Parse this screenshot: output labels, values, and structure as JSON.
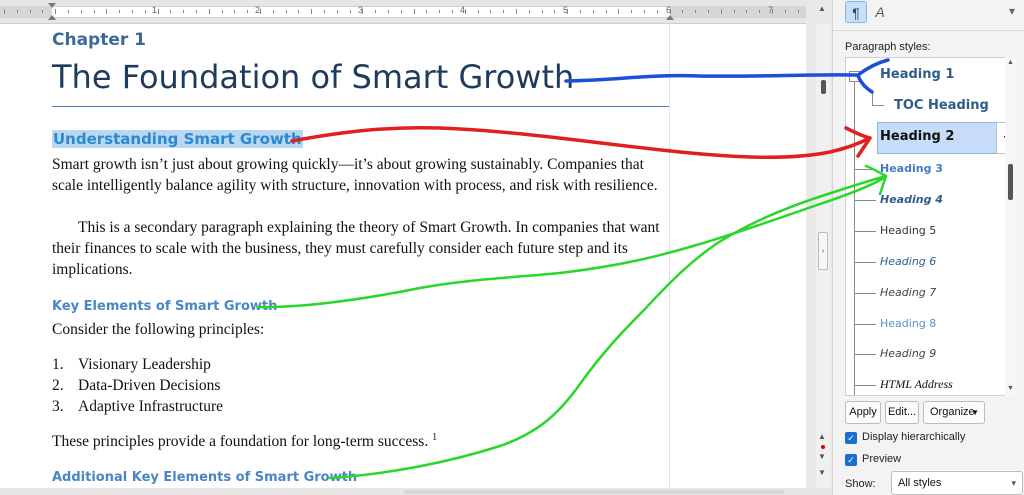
{
  "ruler": {
    "marks": [
      "1",
      "2",
      "3",
      "4",
      "5",
      "6",
      "7"
    ]
  },
  "document": {
    "chapter_label": "Chapter 1",
    "title": "The Foundation of Smart Growth",
    "heading_understanding": "Understanding Smart Growth",
    "para1": "Smart growth isn’t just about growing quickly—it’s about growing sustainably. Companies that scale intelligently balance agility with structure, innovation with process, and risk with resilience.",
    "para2": "This is a secondary paragraph explaining the theory of Smart Growth. In companies that want their finances to scale with the business, they must carefully consider each future step and its implications.",
    "heading_key_elements": "Key Elements of Smart Growth",
    "para3": "Consider the following principles:",
    "list": [
      {
        "num": "1.",
        "text": "Visionary Leadership"
      },
      {
        "num": "2.",
        "text": "Data-Driven Decisions"
      },
      {
        "num": "3.",
        "text": "Adaptive Infrastructure"
      }
    ],
    "para4": "These principles provide a foundation for long-term success.",
    "footnote_ref": "1",
    "heading_additional": "Additional Key Elements of Smart Growth"
  },
  "panel": {
    "toolbar": {
      "paragraph_styles_icon": "pilcrow-icon",
      "character_styles_icon": "character-style-icon"
    },
    "section_label": "Paragraph styles:",
    "styles": [
      {
        "label": "Heading 1",
        "color": "#2f5d8a"
      },
      {
        "label": "TOC Heading",
        "color": "#2f5d8a"
      },
      {
        "label": "Heading 2",
        "color": "#111111"
      },
      {
        "label": "Heading 3",
        "color": "#3f7fc0"
      },
      {
        "label": "Heading 4",
        "color": "#2f5d8a"
      },
      {
        "label": "Heading 5",
        "color": "#333333"
      },
      {
        "label": "Heading 6",
        "color": "#2f5d8a"
      },
      {
        "label": "Heading 7",
        "color": "#444444"
      },
      {
        "label": "Heading 8",
        "color": "#5a8fd0"
      },
      {
        "label": "Heading 9",
        "color": "#444444"
      },
      {
        "label": "HTML Address",
        "color": "#111111"
      }
    ],
    "selected_style": "Heading 2",
    "buttons": {
      "apply": "Apply",
      "edit": "Edit...",
      "organize": "Organize"
    },
    "options": {
      "hierarchical": "Display hierarchically",
      "preview": "Preview"
    },
    "show_label": "Show:",
    "show_value": "All styles"
  },
  "colors": {
    "annotation_blue": "#1d4ed8",
    "annotation_red": "#e02020",
    "annotation_green": "#2ad62a"
  }
}
